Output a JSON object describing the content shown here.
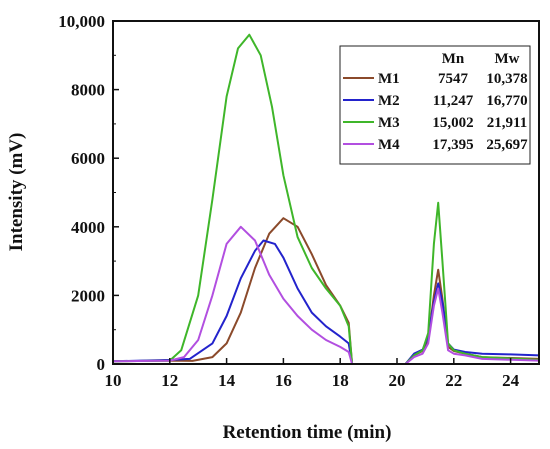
{
  "chart_data": {
    "type": "line",
    "xlabel": "Retention time (min)",
    "ylabel": "Intensity (mV)",
    "xlim": [
      10,
      25
    ],
    "ylim": [
      0,
      10000
    ],
    "x_ticks": [
      "10",
      "12",
      "14",
      "16",
      "18",
      "20",
      "22",
      "24"
    ],
    "y_ticks": [
      "0",
      "2000",
      "4000",
      "6000",
      "8000",
      "10,000"
    ],
    "grid": false,
    "legend_placement": "top-right",
    "legend_header": {
      "mn": "Mn",
      "mw": "Mw"
    },
    "series": [
      {
        "name": "M1",
        "mn": "7547",
        "mw": "10,378",
        "color": "#8B4A2B",
        "x": [
          10,
          12,
          12.8,
          13.5,
          14,
          14.5,
          15,
          15.5,
          16,
          16.5,
          17,
          17.5,
          18,
          18.3,
          18.42,
          18.5,
          20.3,
          20.6,
          20.9,
          21.1,
          21.3,
          21.45,
          21.6,
          21.8,
          22,
          22.4,
          23,
          25
        ],
        "y": [
          80,
          100,
          90,
          200,
          600,
          1500,
          2800,
          3800,
          4250,
          4000,
          3200,
          2300,
          1700,
          1200,
          0,
          0,
          0,
          250,
          380,
          700,
          2000,
          2750,
          1900,
          500,
          380,
          300,
          200,
          150
        ]
      },
      {
        "name": "M2",
        "mn": "11,247",
        "mw": "16,770",
        "color": "#2323CC",
        "x": [
          10,
          12,
          12.7,
          13.5,
          14,
          14.5,
          15,
          15.3,
          15.7,
          16,
          16.5,
          17,
          17.5,
          18,
          18.3,
          18.42,
          18.5,
          20.3,
          20.6,
          20.9,
          21.1,
          21.3,
          21.45,
          21.6,
          21.8,
          22,
          22.4,
          23,
          24,
          25
        ],
        "y": [
          80,
          120,
          150,
          600,
          1400,
          2500,
          3300,
          3600,
          3500,
          3100,
          2200,
          1500,
          1100,
          800,
          600,
          0,
          0,
          0,
          300,
          420,
          800,
          1800,
          2350,
          1800,
          600,
          420,
          350,
          300,
          280,
          250
        ]
      },
      {
        "name": "M3",
        "mn": "15,002",
        "mw": "21,911",
        "color": "#3FB62A",
        "x": [
          10,
          12,
          12.4,
          13,
          13.5,
          14,
          14.4,
          14.8,
          15.2,
          15.6,
          16,
          16.5,
          17,
          17.5,
          18,
          18.3,
          18.42,
          18.5,
          20.3,
          20.6,
          20.9,
          21.1,
          21.3,
          21.45,
          21.6,
          21.8,
          22,
          22.4,
          23,
          25
        ],
        "y": [
          80,
          100,
          400,
          2000,
          4800,
          7800,
          9200,
          9600,
          9000,
          7500,
          5500,
          3700,
          2800,
          2200,
          1700,
          1100,
          0,
          0,
          0,
          250,
          400,
          900,
          3500,
          4700,
          3000,
          600,
          400,
          300,
          200,
          120
        ]
      },
      {
        "name": "M4",
        "mn": "17,395",
        "mw": "25,697",
        "color": "#B24FE0",
        "x": [
          10,
          12,
          12.5,
          13,
          13.5,
          14,
          14.5,
          15,
          15.5,
          16,
          16.5,
          17,
          17.5,
          18,
          18.3,
          18.42,
          18.5,
          20.3,
          20.6,
          20.9,
          21.1,
          21.3,
          21.45,
          21.6,
          21.8,
          22,
          22.4,
          23,
          25
        ],
        "y": [
          80,
          100,
          200,
          700,
          2000,
          3500,
          4000,
          3600,
          2600,
          1900,
          1400,
          1000,
          700,
          500,
          350,
          0,
          0,
          0,
          200,
          300,
          600,
          1700,
          2200,
          1500,
          400,
          300,
          250,
          150,
          100
        ]
      }
    ]
  }
}
